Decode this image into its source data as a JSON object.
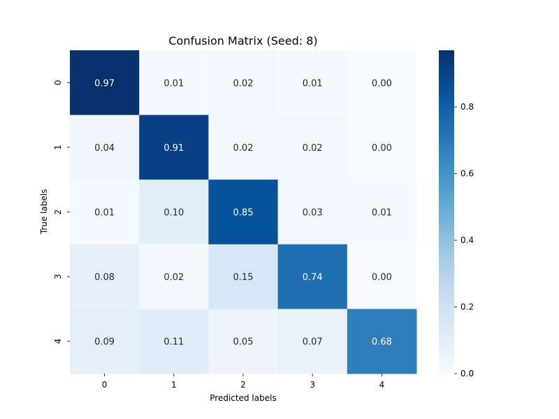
{
  "chart_data": {
    "type": "heatmap",
    "title": "Confusion Matrix (Seed: 8)",
    "xlabel": "Predicted labels",
    "ylabel": "True labels",
    "x_categories": [
      "0",
      "1",
      "2",
      "3",
      "4"
    ],
    "y_categories": [
      "0",
      "1",
      "2",
      "3",
      "4"
    ],
    "values": [
      [
        0.97,
        0.01,
        0.02,
        0.01,
        0.0
      ],
      [
        0.04,
        0.91,
        0.02,
        0.02,
        0.0
      ],
      [
        0.01,
        0.1,
        0.85,
        0.03,
        0.01
      ],
      [
        0.08,
        0.02,
        0.15,
        0.74,
        0.0
      ],
      [
        0.09,
        0.11,
        0.05,
        0.07,
        0.68
      ]
    ],
    "value_format": "0.00",
    "colormap": "Blues",
    "color_range": [
      0,
      0.97
    ],
    "colorbar": {
      "ticks": [
        0.0,
        0.2,
        0.4,
        0.6,
        0.8
      ],
      "tick_labels": [
        "0.0",
        "0.2",
        "0.4",
        "0.6",
        "0.8"
      ]
    }
  }
}
